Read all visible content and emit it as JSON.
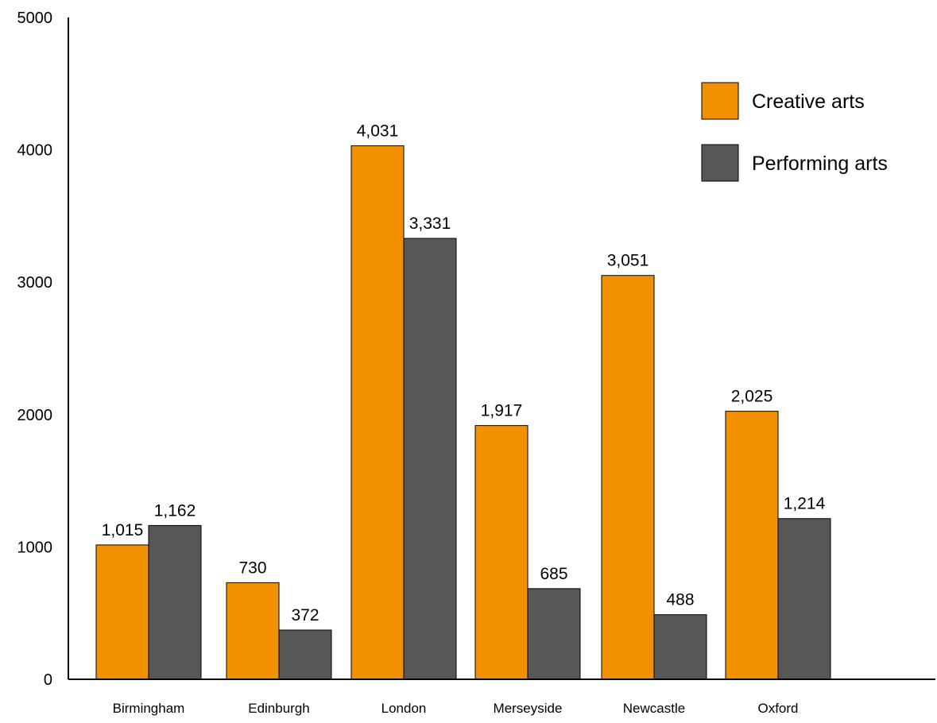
{
  "chart_data": {
    "type": "bar",
    "title": "",
    "xlabel": "",
    "ylabel": "",
    "ylim": [
      0,
      5000
    ],
    "yticks": [
      0,
      1000,
      2000,
      3000,
      4000,
      5000
    ],
    "grid": false,
    "legend_position": "top-right",
    "categories": [
      "Birmingham",
      "Edinburgh",
      "London",
      "Merseyside",
      "Newcastle",
      "Oxford"
    ],
    "series": [
      {
        "name": "Creative arts",
        "color": "#f29100",
        "values": [
          1015,
          730,
          4031,
          1917,
          3051,
          2025
        ],
        "labels": [
          "1,015",
          "730",
          "4,031",
          "1,917",
          "3,051",
          "2,025"
        ]
      },
      {
        "name": "Performing arts",
        "color": "#575757",
        "values": [
          1162,
          372,
          3331,
          685,
          488,
          1214
        ],
        "labels": [
          "1,162",
          "372",
          "3,331",
          "685",
          "488",
          "1,214"
        ]
      }
    ]
  }
}
